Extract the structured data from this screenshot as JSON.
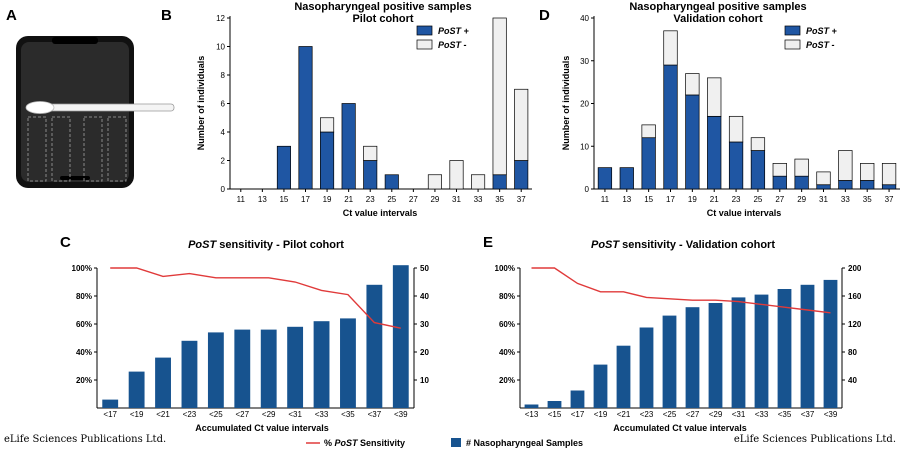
{
  "publisher": {
    "left": "eLife Sciences Publications Ltd.",
    "right": "eLife Sciences Publications Ltd."
  },
  "panels": {
    "A": "A",
    "B": "B",
    "C": "C",
    "D": "D",
    "E": "E"
  },
  "colors": {
    "pos": "#1f56a3",
    "neg": "#f0f0f0",
    "bar": "#17538f",
    "line": "#e03a3a"
  },
  "chart_data": [
    {
      "id": "B",
      "type": "bar",
      "stacked": true,
      "title": "Nasopharyngeal positive samples",
      "subtitle": "Pilot cohort",
      "xlabel": "Ct value intervals",
      "ylabel": "Number of individuals",
      "ylim": [
        0,
        12
      ],
      "yticks": [
        0,
        2,
        4,
        6,
        8,
        10,
        12
      ],
      "categories": [
        "11",
        "13",
        "15",
        "17",
        "19",
        "21",
        "23",
        "25",
        "27",
        "29",
        "31",
        "33",
        "35",
        "37"
      ],
      "series": [
        {
          "name": "PoST +",
          "values": [
            0,
            0,
            3,
            10,
            4,
            6,
            2,
            1,
            0,
            0,
            0,
            0,
            1,
            2
          ]
        },
        {
          "name": "PoST -",
          "values": [
            0,
            0,
            0,
            0,
            1,
            0,
            1,
            0,
            0,
            1,
            2,
            1,
            11,
            5
          ]
        }
      ],
      "legend": "top-right"
    },
    {
      "id": "D",
      "type": "bar",
      "stacked": true,
      "title": "Nasopharyngeal positive samples",
      "subtitle": "Validation cohort",
      "xlabel": "Ct value intervals",
      "ylabel": "Number of individuals",
      "ylim": [
        0,
        40
      ],
      "yticks": [
        0,
        10,
        20,
        30,
        40
      ],
      "categories": [
        "11",
        "13",
        "15",
        "17",
        "19",
        "21",
        "23",
        "25",
        "27",
        "29",
        "31",
        "33",
        "35",
        "37"
      ],
      "series": [
        {
          "name": "PoST +",
          "values": [
            5,
            5,
            12,
            29,
            22,
            17,
            11,
            9,
            3,
            3,
            1,
            2,
            2,
            1
          ]
        },
        {
          "name": "PoST -",
          "values": [
            0,
            0,
            3,
            8,
            5,
            9,
            6,
            3,
            3,
            4,
            3,
            7,
            4,
            5
          ]
        }
      ],
      "legend": "top-right"
    },
    {
      "id": "C",
      "type": "bar",
      "combo": "bar+line",
      "title_italic": "PoST",
      "title_rest": " sensitivity - Pilot cohort",
      "xlabel": "Accumulated Ct value intervals",
      "ylim_left": [
        0,
        100
      ],
      "yticks_left": [
        "20%",
        "40%",
        "60%",
        "80%",
        "100%"
      ],
      "ylim_right": [
        0,
        50
      ],
      "yticks_right": [
        10,
        20,
        30,
        40,
        50
      ],
      "categories": [
        "<17",
        "<19",
        "<21",
        "<23",
        "<25",
        "<27",
        "<29",
        "<31",
        "<33",
        "<35",
        "<37",
        "<39"
      ],
      "samples": [
        3,
        13,
        18,
        24,
        27,
        28,
        28,
        29,
        31,
        32,
        44,
        51
      ],
      "sensitivity": [
        100,
        100,
        94,
        96,
        93,
        93,
        93,
        90,
        84,
        81,
        61,
        57
      ]
    },
    {
      "id": "E",
      "type": "bar",
      "combo": "bar+line",
      "title_italic": "PoST",
      "title_rest": " sensitivity - Validation cohort",
      "xlabel": "Accumulated Ct value intervals",
      "ylim_left": [
        0,
        100
      ],
      "yticks_left": [
        "20%",
        "40%",
        "60%",
        "80%",
        "100%"
      ],
      "ylim_right": [
        0,
        200
      ],
      "yticks_right": [
        40,
        80,
        120,
        160,
        200
      ],
      "categories": [
        "<13",
        "<15",
        "<17",
        "<19",
        "<21",
        "<23",
        "<25",
        "<27",
        "<29",
        "<31",
        "<33",
        "<35",
        "<37",
        "<39"
      ],
      "samples": [
        5,
        10,
        25,
        62,
        89,
        115,
        132,
        144,
        150,
        158,
        162,
        170,
        176,
        183
      ],
      "sensitivity": [
        100,
        100,
        89,
        83,
        83,
        79,
        78,
        77,
        77,
        76,
        74,
        72,
        70,
        68
      ]
    }
  ],
  "legend_bottom": {
    "line_prefix": "% ",
    "line_italic": "PoST",
    "line_rest": " Sensitivity",
    "bar": "# Nasopharyngeal Samples"
  }
}
